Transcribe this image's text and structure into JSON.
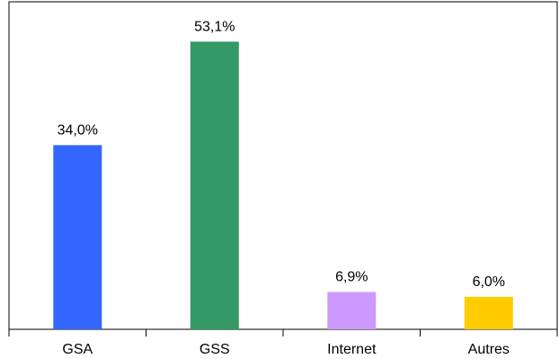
{
  "chart_data": {
    "type": "bar",
    "title": "",
    "xlabel": "",
    "ylabel": "",
    "categories": [
      "GSA",
      "GSS",
      "Internet",
      "Autres"
    ],
    "values": [
      34.0,
      53.1,
      6.9,
      6.0
    ],
    "data_labels": [
      "34,0%",
      "53,1%",
      "6,9%",
      "6,0%"
    ],
    "colors": [
      "#3366ff",
      "#339966",
      "#cc99ff",
      "#ffcc00"
    ],
    "ylim": [
      0,
      60
    ],
    "grid": false,
    "legend": "none"
  }
}
